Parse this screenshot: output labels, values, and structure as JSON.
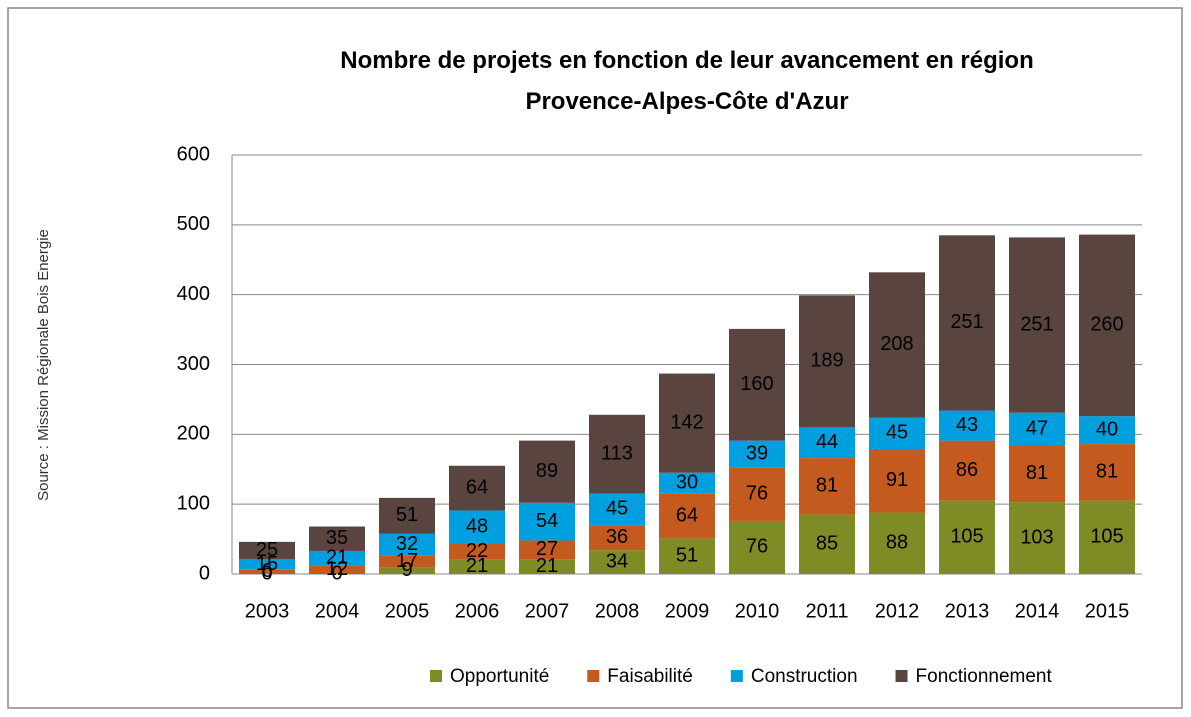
{
  "chart_data": {
    "type": "stacked_bar",
    "title": "Nombre de projets en fonction de leur avancement en région Provence-Alpes-Côte d'Azur",
    "y_label": "Source : Mission Régionale Bois Energie",
    "categories": [
      "2003",
      "2004",
      "2005",
      "2006",
      "2007",
      "2008",
      "2009",
      "2010",
      "2011",
      "2012",
      "2013",
      "2014",
      "2015"
    ],
    "series": [
      {
        "name": "Opportunité",
        "color": "#7f8b24",
        "values": [
          0,
          0,
          9,
          21,
          21,
          34,
          51,
          76,
          85,
          88,
          105,
          103,
          105
        ]
      },
      {
        "name": "Faisabilité",
        "color": "#c55a1f",
        "values": [
          6,
          12,
          17,
          22,
          27,
          36,
          64,
          76,
          81,
          91,
          86,
          81,
          81
        ]
      },
      {
        "name": "Construction",
        "color": "#00a0e0",
        "values": [
          15,
          21,
          32,
          48,
          54,
          45,
          30,
          39,
          44,
          45,
          43,
          47,
          40
        ]
      },
      {
        "name": "Fonctionnement",
        "color": "#594440",
        "values": [
          25,
          35,
          51,
          64,
          89,
          113,
          142,
          160,
          189,
          208,
          251,
          251,
          260
        ]
      }
    ],
    "ylim": [
      0,
      600
    ],
    "yticks": [
      0,
      100,
      200,
      300,
      400,
      500,
      600
    ],
    "grid": true,
    "legend": "bottom"
  }
}
